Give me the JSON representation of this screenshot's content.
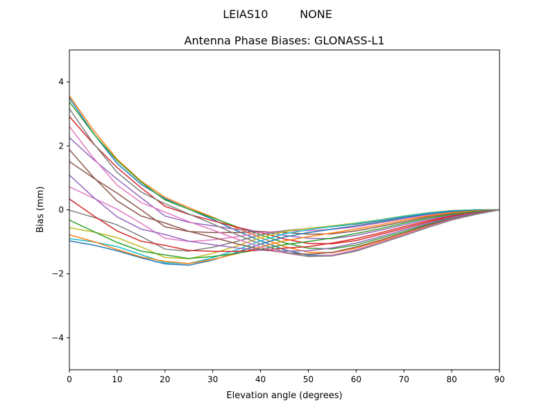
{
  "chart_data": {
    "type": "line",
    "suptitle": "LEIAS10         NONE",
    "title": "Antenna Phase Biases: GLONASS-L1",
    "xlabel": "Elevation angle (degrees)",
    "ylabel": "Bias (mm)",
    "xlim": [
      0,
      90
    ],
    "ylim": [
      -5,
      5
    ],
    "xticks": [
      0,
      10,
      20,
      30,
      40,
      50,
      60,
      70,
      80,
      90
    ],
    "yticks": [
      -4,
      -2,
      0,
      2,
      4
    ],
    "ytick_labels": [
      "−4",
      "−2",
      "0",
      "2",
      "4"
    ],
    "grid": false,
    "colors": [
      "#1f77b4",
      "#ff7f0e",
      "#2ca02c",
      "#d62728",
      "#9467bd",
      "#8c564b",
      "#e377c2",
      "#7f7f7f",
      "#bcbd22",
      "#17becf"
    ],
    "x": [
      0,
      5,
      10,
      15,
      20,
      25,
      30,
      35,
      40,
      45,
      50,
      55,
      60,
      65,
      70,
      75,
      80,
      85,
      90
    ],
    "series": [
      {
        "values": [
          3.5,
          2.4,
          1.45,
          0.8,
          0.35,
          0.02,
          -0.3,
          -0.65,
          -0.97,
          -1.25,
          -1.42,
          -1.42,
          -1.27,
          -1.04,
          -0.8,
          -0.54,
          -0.31,
          -0.14,
          0
        ]
      },
      {
        "values": [
          3.57,
          2.5,
          1.58,
          0.9,
          0.39,
          0.07,
          -0.23,
          -0.57,
          -0.87,
          -1.15,
          -1.33,
          -1.34,
          -1.2,
          -0.98,
          -0.76,
          -0.51,
          -0.29,
          -0.13,
          0
        ]
      },
      {
        "values": [
          3.38,
          2.39,
          1.54,
          0.87,
          0.31,
          0.02,
          -0.25,
          -0.53,
          -0.78,
          -1.03,
          -1.2,
          -1.22,
          -1.1,
          -0.89,
          -0.68,
          -0.45,
          -0.25,
          -0.11,
          0
        ]
      },
      {
        "values": [
          2.92,
          2.07,
          1.32,
          0.69,
          0.11,
          -0.14,
          -0.34,
          -0.54,
          -0.71,
          -0.91,
          -1.05,
          -1.06,
          -0.96,
          -0.77,
          -0.58,
          -0.38,
          -0.21,
          -0.09,
          0
        ]
      },
      {
        "values": [
          2.26,
          1.58,
          0.96,
          0.38,
          -0.19,
          -0.39,
          -0.5,
          -0.61,
          -0.68,
          -0.8,
          -0.89,
          -0.9,
          -0.8,
          -0.64,
          -0.47,
          -0.3,
          -0.16,
          -0.06,
          0
        ]
      },
      {
        "values": [
          1.51,
          1.0,
          0.52,
          0.0,
          -0.53,
          -0.68,
          -0.71,
          -0.71,
          -0.68,
          -0.71,
          -0.76,
          -0.75,
          -0.66,
          -0.52,
          -0.37,
          -0.22,
          -0.11,
          -0.04,
          0
        ]
      },
      {
        "values": [
          0.72,
          0.37,
          0.02,
          -0.42,
          -0.89,
          -0.99,
          -0.94,
          -0.84,
          -0.71,
          -0.66,
          -0.65,
          -0.61,
          -0.54,
          -0.41,
          -0.28,
          -0.16,
          -0.07,
          -0.02,
          0
        ]
      },
      {
        "values": [
          -0.01,
          -0.23,
          -0.47,
          -0.83,
          -1.23,
          -1.29,
          -1.17,
          -0.99,
          -0.78,
          -0.65,
          -0.58,
          -0.53,
          -0.45,
          -0.34,
          -0.22,
          -0.11,
          -0.04,
          0.0,
          0
        ]
      },
      {
        "values": [
          -0.56,
          -0.69,
          -0.87,
          -1.16,
          -1.49,
          -1.53,
          -1.36,
          -1.13,
          -0.87,
          -0.68,
          -0.58,
          -0.5,
          -0.41,
          -0.31,
          -0.19,
          -0.09,
          -0.02,
          0.0,
          0
        ]
      },
      {
        "values": [
          -0.9,
          -1.0,
          -1.15,
          -1.4,
          -1.65,
          -1.68,
          -1.5,
          -1.25,
          -0.97,
          -0.75,
          -0.62,
          -0.52,
          -0.43,
          -0.32,
          -0.2,
          -0.1,
          -0.03,
          0,
          0
        ]
      },
      {
        "values": [
          -0.97,
          -1.1,
          -1.28,
          -1.5,
          -1.69,
          -1.73,
          -1.57,
          -1.33,
          -1.07,
          -0.85,
          -0.71,
          -0.6,
          -0.5,
          -0.38,
          -0.25,
          -0.13,
          -0.05,
          -0.01,
          0
        ]
      },
      {
        "values": [
          -0.78,
          -0.99,
          -1.24,
          -1.47,
          -1.61,
          -1.68,
          -1.55,
          -1.37,
          -1.16,
          -0.97,
          -0.84,
          -0.72,
          -0.6,
          -0.47,
          -0.32,
          -0.19,
          -0.09,
          -0.03,
          0
        ]
      },
      {
        "values": [
          -0.32,
          -0.67,
          -1.02,
          -1.29,
          -1.41,
          -1.52,
          -1.46,
          -1.36,
          -1.23,
          -1.09,
          -0.99,
          -0.88,
          -0.74,
          -0.59,
          -0.42,
          -0.26,
          -0.14,
          -0.05,
          0
        ]
      },
      {
        "values": [
          0.34,
          -0.18,
          -0.66,
          -0.98,
          -1.11,
          -1.27,
          -1.3,
          -1.3,
          -1.26,
          -1.2,
          -1.15,
          -1.04,
          -0.9,
          -0.72,
          -0.53,
          -0.34,
          -0.19,
          -0.08,
          0
        ]
      },
      {
        "values": [
          1.09,
          0.4,
          -0.22,
          -0.6,
          -0.77,
          -0.98,
          -1.09,
          -1.19,
          -1.26,
          -1.29,
          -1.28,
          -1.19,
          -1.04,
          -0.84,
          -0.63,
          -0.42,
          -0.23,
          -0.1,
          0
        ]
      },
      {
        "values": [
          1.88,
          1.03,
          0.28,
          -0.19,
          -0.41,
          -0.67,
          -0.86,
          -1.06,
          -1.23,
          -1.34,
          -1.39,
          -1.33,
          -1.16,
          -0.95,
          -0.72,
          -0.48,
          -0.28,
          -0.12,
          0
        ]
      },
      {
        "values": [
          2.61,
          1.63,
          0.77,
          0.23,
          -0.07,
          -0.37,
          -0.63,
          -0.91,
          -1.16,
          -1.35,
          -1.46,
          -1.41,
          -1.25,
          -1.02,
          -0.78,
          -0.53,
          -0.3,
          -0.14,
          0
        ]
      },
      {
        "values": [
          3.16,
          2.09,
          1.17,
          0.56,
          0.19,
          -0.13,
          -0.44,
          -0.77,
          -1.07,
          -1.32,
          -1.46,
          -1.44,
          -1.29,
          -1.05,
          -0.81,
          -0.55,
          -0.32,
          -0.14,
          0
        ]
      }
    ]
  }
}
